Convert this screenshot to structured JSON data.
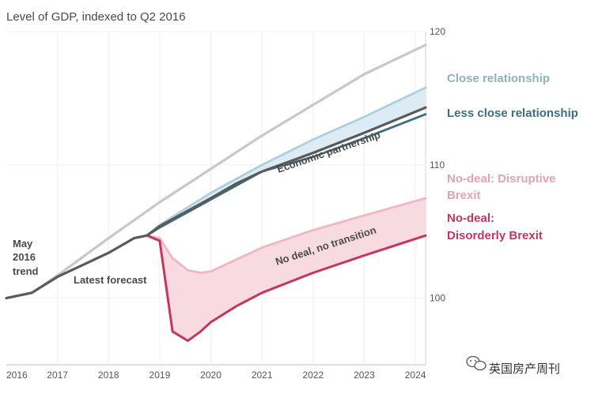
{
  "chart_data": {
    "type": "line",
    "title": "Level of GDP, indexed to Q2 2016",
    "xlabel": "",
    "ylabel": "",
    "x_ticks": [
      "2016",
      "2017",
      "2018",
      "2019",
      "2020",
      "2021",
      "2022",
      "2023",
      "2024"
    ],
    "y_ticks": [
      100,
      110,
      120
    ],
    "xlim": [
      2016.0,
      2024.2
    ],
    "ylim": [
      95,
      120
    ],
    "grid": "vertical",
    "series": [
      {
        "name": "May 2016 trend",
        "color": "#c8c8c8",
        "points": [
          [
            2016.0,
            100.0
          ],
          [
            2016.5,
            100.4
          ],
          [
            2017.0,
            101.7
          ],
          [
            2018.0,
            104.5
          ],
          [
            2019.0,
            107.2
          ],
          [
            2020.0,
            109.7
          ],
          [
            2021.0,
            112.2
          ],
          [
            2022.0,
            114.5
          ],
          [
            2023.0,
            116.8
          ],
          [
            2024.2,
            119.0
          ]
        ]
      },
      {
        "name": "Latest forecast",
        "color": "#5a5a5a",
        "points": [
          [
            2016.0,
            100.0
          ],
          [
            2016.5,
            100.4
          ],
          [
            2017.0,
            101.6
          ],
          [
            2017.5,
            102.5
          ],
          [
            2018.0,
            103.4
          ],
          [
            2018.5,
            104.5
          ],
          [
            2018.75,
            104.7
          ],
          [
            2019.0,
            105.4
          ],
          [
            2020.0,
            107.5
          ],
          [
            2020.5,
            108.6
          ],
          [
            2021.0,
            109.5
          ],
          [
            2022.0,
            110.9
          ],
          [
            2023.0,
            112.4
          ],
          [
            2024.2,
            114.3
          ]
        ]
      },
      {
        "name": "Close relationship",
        "color": "#a9cfdc",
        "points": [
          [
            2018.75,
            104.7
          ],
          [
            2019.0,
            105.5
          ],
          [
            2020.0,
            107.9
          ],
          [
            2021.0,
            110.0
          ],
          [
            2022.0,
            111.9
          ],
          [
            2023.0,
            113.6
          ],
          [
            2024.2,
            115.8
          ]
        ]
      },
      {
        "name": "Less close relationship",
        "color": "#3e6f80",
        "points": [
          [
            2018.75,
            104.7
          ],
          [
            2019.0,
            105.3
          ],
          [
            2020.0,
            107.4
          ],
          [
            2021.0,
            109.5
          ],
          [
            2022.0,
            110.6
          ],
          [
            2023.0,
            112.0
          ],
          [
            2024.2,
            113.8
          ]
        ]
      },
      {
        "name": "No-deal: Disruptive Brexit",
        "color": "#f0b6c3",
        "points": [
          [
            2018.75,
            104.7
          ],
          [
            2019.0,
            104.5
          ],
          [
            2019.25,
            103.0
          ],
          [
            2019.55,
            102.1
          ],
          [
            2019.8,
            101.9
          ],
          [
            2020.0,
            102.0
          ],
          [
            2020.5,
            102.9
          ],
          [
            2021.0,
            103.8
          ],
          [
            2022.0,
            105.1
          ],
          [
            2023.0,
            106.2
          ],
          [
            2024.2,
            107.5
          ]
        ]
      },
      {
        "name": "No-deal: Disorderly Brexit",
        "color": "#c4365f",
        "points": [
          [
            2018.75,
            104.7
          ],
          [
            2019.0,
            104.3
          ],
          [
            2019.25,
            97.5
          ],
          [
            2019.55,
            96.8
          ],
          [
            2019.8,
            97.5
          ],
          [
            2020.0,
            98.2
          ],
          [
            2020.5,
            99.4
          ],
          [
            2021.0,
            100.4
          ],
          [
            2022.0,
            101.9
          ],
          [
            2023.0,
            103.2
          ],
          [
            2024.2,
            104.7
          ]
        ]
      }
    ],
    "bands": [
      {
        "between": [
          "Latest forecast",
          "Close relationship"
        ],
        "color": "#dcebf4"
      },
      {
        "between": [
          "No-deal: Disruptive Brexit",
          "No-deal: Disorderly Brexit"
        ],
        "color": "#f8dbe1"
      }
    ]
  },
  "labels": {
    "close_relationship": "Close relationship",
    "less_close_relationship": "Less close relationship",
    "disruptive_line1": "No-deal: Disruptive",
    "disruptive_line2": "Brexit",
    "disorderly_line1": "No-deal:",
    "disorderly_line2": "Disorderly Brexit",
    "economic_partnership": "Economic partnership",
    "no_deal_no_transition": "No deal, no transition",
    "may_line1": "May",
    "may_line2": "2016",
    "may_line3": "trend",
    "latest_forecast": "Latest forecast"
  },
  "colors": {
    "close": "#8fb3be",
    "less_close": "#3e6f80",
    "disruptive": "#e3a3b3",
    "disorderly": "#c4365f",
    "ann_blue": "#2f7090",
    "ann_red": "#c4365f"
  },
  "watermark": {
    "icon": "wechat-icon",
    "text": "英国房产周刊"
  }
}
